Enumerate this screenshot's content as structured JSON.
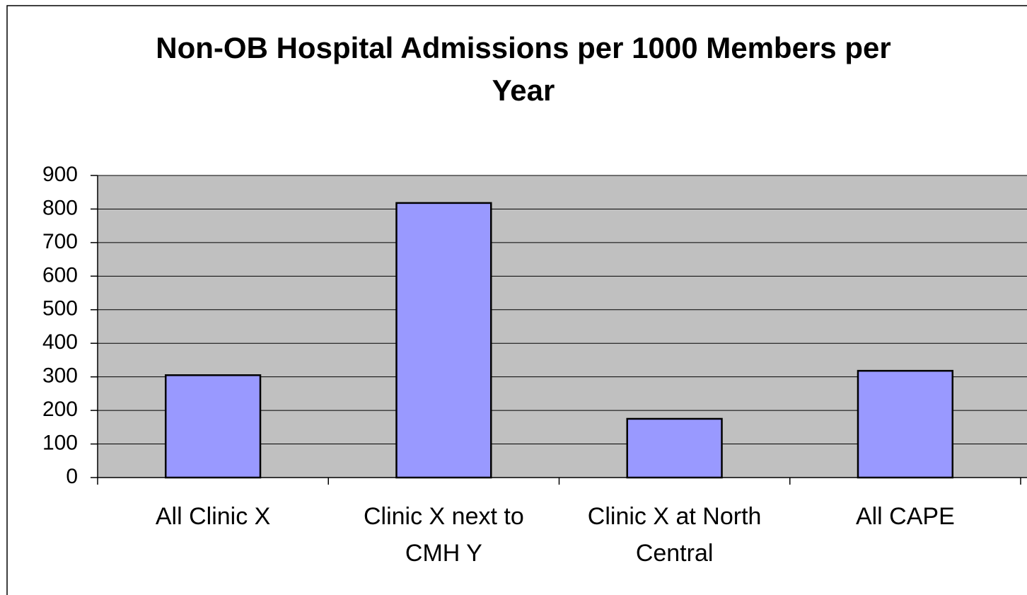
{
  "chart_data": {
    "type": "bar",
    "title": "Non-OB Hospital Admissions per 1000 Members per Year",
    "categories": [
      "All Clinic X",
      "Clinic X next to CMH Y",
      "Clinic X at North Central",
      "All CAPE"
    ],
    "values": [
      305,
      818,
      175,
      318
    ],
    "color": "#9999ff",
    "plot_background": "#c0c0c0",
    "ylim": [
      0,
      900
    ],
    "yticks": [
      0,
      100,
      200,
      300,
      400,
      500,
      600,
      700,
      800,
      900
    ],
    "grid": true
  }
}
